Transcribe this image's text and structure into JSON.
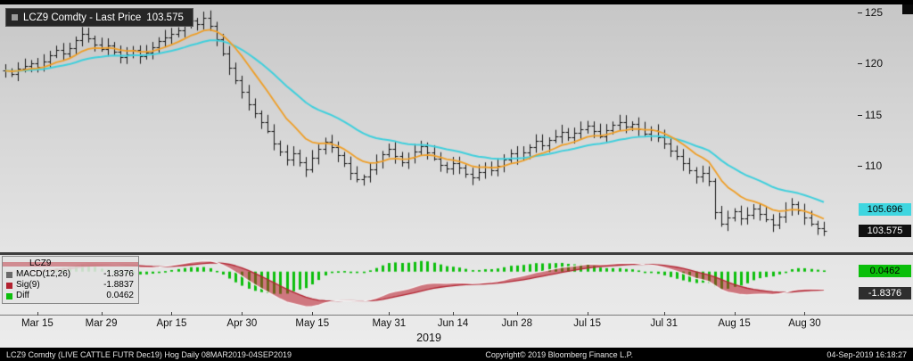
{
  "price_legend": {
    "label": "LCZ9 Comdty - Last Price",
    "value": "103.575"
  },
  "price_axis": {
    "ma_badge": "105.696",
    "last_badge": "103.575"
  },
  "macd_legend": {
    "series": "LCZ9",
    "rows": [
      {
        "label": "MACD(12,26)",
        "value": "-1.8376"
      },
      {
        "label": "Sig(9)",
        "value": "-1.8837"
      },
      {
        "label": "Diff",
        "value": "0.0462"
      }
    ]
  },
  "macd_axis": {
    "diff_badge": "0.0462",
    "macd_badge": "-1.8376"
  },
  "x_axis": {
    "year": "2019"
  },
  "status_bar": {
    "left": "LCZ9 Comdty (LIVE CATTLE FUTR  Dec19) Hog  Daily 08MAR2019-04SEP2019",
    "center": "Copyright© 2019 Bloomberg Finance L.P.",
    "right": "04-Sep-2019 16:18:27"
  },
  "colors": {
    "bar": "#141414",
    "ma_fast": "#ee9e27",
    "ma_slow": "#3fcfdc",
    "macd_line": "#f4f4f4",
    "sig_line": "#b22230",
    "macd_fill": "rgba(185,25,40,0.55)",
    "diff": "#0cbf0c",
    "badge_ma_bg": "#3fd6e0",
    "badge_last_bg": "#101010",
    "badge_last_text": "#ffffff",
    "badge_diff_bg": "#0abf0a",
    "badge_macd_bg": "#2e2e2e",
    "badge_macd_text": "#ffffff"
  },
  "chart_data": [
    {
      "type": "line",
      "panel": "price",
      "title": "LCZ9 Comdty - Last Price",
      "ylim": [
        101.5,
        125.8
      ],
      "yticks": [
        125,
        120,
        115,
        110
      ],
      "x_ticks": [
        {
          "label": "Mar 15",
          "i": 5
        },
        {
          "label": "Mar 29",
          "i": 15
        },
        {
          "label": "Apr 15",
          "i": 26
        },
        {
          "label": "Apr 30",
          "i": 37
        },
        {
          "label": "May 15",
          "i": 48
        },
        {
          "label": "May 31",
          "i": 60
        },
        {
          "label": "Jun 14",
          "i": 70
        },
        {
          "label": "Jun 28",
          "i": 80
        },
        {
          "label": "Jul 15",
          "i": 91
        },
        {
          "label": "Jul 31",
          "i": 103
        },
        {
          "label": "Aug 15",
          "i": 114
        },
        {
          "label": "Aug 30",
          "i": 125
        }
      ],
      "last_price": 103.575,
      "series": [
        {
          "name": "Last Price",
          "style": "hlc-bars",
          "color": "#141414",
          "values": [
            119.3,
            119.0,
            119.5,
            119.8,
            120.0,
            119.7,
            120.2,
            120.8,
            121.3,
            121.0,
            121.5,
            122.3,
            122.9,
            122.5,
            121.9,
            121.4,
            121.8,
            121.2,
            120.6,
            120.9,
            121.3,
            120.7,
            121.1,
            121.6,
            122.2,
            122.6,
            122.9,
            123.3,
            123.8,
            124.2,
            123.9,
            124.5,
            123.7,
            122.4,
            121.0,
            119.6,
            118.4,
            117.2,
            116.0,
            115.1,
            114.3,
            113.4,
            112.2,
            111.4,
            110.6,
            111.2,
            110.3,
            109.6,
            110.8,
            111.6,
            112.3,
            111.8,
            111.0,
            110.2,
            109.3,
            108.7,
            108.9,
            109.6,
            110.4,
            111.1,
            111.6,
            110.9,
            110.3,
            110.8,
            111.4,
            111.9,
            111.3,
            110.7,
            110.1,
            109.7,
            110.2,
            109.8,
            109.2,
            108.8,
            109.4,
            109.9,
            109.5,
            110.0,
            110.6,
            111.2,
            110.8,
            111.3,
            111.8,
            112.4,
            112.0,
            112.5,
            112.9,
            113.3,
            112.8,
            113.2,
            113.6,
            113.9,
            113.4,
            112.9,
            113.5,
            114.0,
            114.3,
            113.8,
            114.1,
            113.6,
            113.1,
            113.5,
            112.8,
            112.2,
            111.5,
            110.9,
            110.2,
            109.5,
            108.9,
            109.3,
            108.5,
            105.4,
            104.3,
            104.9,
            105.5,
            104.8,
            105.2,
            105.8,
            105.3,
            104.7,
            104.2,
            105.0,
            105.7,
            106.2,
            105.6,
            104.9,
            104.3,
            103.9,
            103.575
          ]
        },
        {
          "name": "Moving average (fast)",
          "style": "line",
          "color": "#ee9e27",
          "derived": "ema(close,10)"
        },
        {
          "name": "Moving average (slow)",
          "style": "line",
          "color": "#3fcfdc",
          "derived": "ema(close,25)",
          "last_value": 105.696
        }
      ]
    },
    {
      "type": "line",
      "panel": "macd",
      "title": "MACD(12,26) / Sig(9) / Diff",
      "derived": "computed from price closes",
      "last_values": {
        "macd": -1.8376,
        "sig": -1.8837,
        "diff": 0.0462
      }
    }
  ]
}
